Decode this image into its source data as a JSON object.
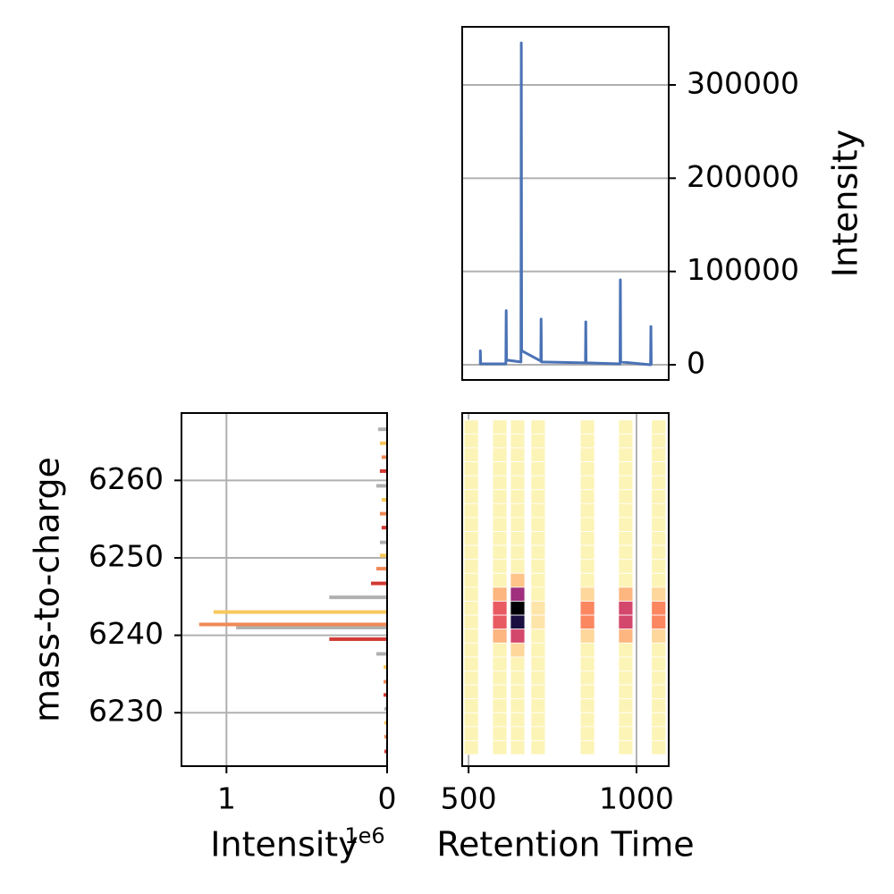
{
  "chart_data": [
    {
      "type": "line",
      "x": [
        535,
        535,
        536,
        611,
        612,
        613,
        656,
        657,
        658,
        715,
        716,
        717,
        848,
        849,
        850,
        951,
        952,
        953,
        1042,
        1043,
        1044
      ],
      "series": [
        {
          "color": "#4a72b5",
          "values": [
            0,
            15000,
            1000,
            1000,
            58000,
            5000,
            3000,
            345000,
            15000,
            4000,
            49000,
            3000,
            2000,
            46000,
            2000,
            1000,
            91000,
            3000,
            0,
            41000,
            0
          ]
        }
      ],
      "xlim": [
        481,
        1096
      ],
      "ylim": [
        -16300,
        362300
      ],
      "yticks": [
        0,
        100000,
        200000,
        300000
      ],
      "ylabel": "Intensity",
      "y_axis_side": "right",
      "grid": "y"
    },
    {
      "type": "barh",
      "series": [
        {
          "color": "#b0b0b0",
          "y": [
            6266.6,
            6259.3,
            6252.0,
            6244.9,
            6241.0,
            6237.6,
            6230.5
          ],
          "values": [
            56000,
            67000,
            45000,
            360000,
            940000,
            67000,
            17000
          ]
        },
        {
          "color": "#f7c85c",
          "y": [
            6264.8,
            6257.5,
            6250.3,
            6243.0,
            6235.9,
            6228.7
          ],
          "values": [
            45000,
            34000,
            45000,
            1080000,
            22000,
            17000
          ]
        },
        {
          "color": "#ef8a58",
          "y": [
            6263.0,
            6255.7,
            6248.6,
            6241.4,
            6234.0,
            6226.9
          ],
          "values": [
            34000,
            45000,
            67000,
            1170000,
            22000,
            17000
          ]
        },
        {
          "color": "#d23a33",
          "y": [
            6261.2,
            6253.9,
            6246.7,
            6239.5,
            6232.3,
            6225.0
          ],
          "values": [
            45000,
            34000,
            100000,
            360000,
            22000,
            17000
          ]
        }
      ],
      "xlim": [
        1280000,
        0
      ],
      "xticks": [
        {
          "value": 1000000,
          "label": "1"
        },
        0
      ],
      "x_offset_text": "1e6",
      "ylim": [
        6223.1,
        6268.7
      ],
      "yticks": [
        6230,
        6240,
        6250,
        6260
      ],
      "xlabel": "Intensity",
      "ylabel": "mass-to-charge",
      "grid": "xy"
    },
    {
      "type": "heatmap",
      "x": [
        508,
        593,
        646,
        707,
        854,
        968,
        1066
      ],
      "y": [
        6266.9,
        6265.1,
        6263.3,
        6261.5,
        6259.7,
        6257.9,
        6256.1,
        6254.3,
        6252.5,
        6250.7,
        6248.9,
        6247.1,
        6245.3,
        6243.5,
        6241.7,
        6239.9,
        6238.1,
        6236.3,
        6234.5,
        6232.7,
        6230.9,
        6229.1,
        6227.3,
        6225.5
      ],
      "z": [
        [
          20000,
          20000,
          20000,
          20000,
          20000,
          20000,
          20000,
          20000,
          20000,
          20000,
          20000,
          20000,
          20000,
          20000,
          20000,
          20000,
          20000,
          20000,
          20000,
          20000,
          20000,
          20000,
          20000,
          20000
        ],
        [
          20000,
          20000,
          20000,
          20000,
          20000,
          20000,
          20000,
          20000,
          20000,
          20000,
          20000,
          20000,
          150000,
          350000,
          350000,
          150000,
          20000,
          20000,
          20000,
          20000,
          20000,
          20000,
          20000,
          20000
        ],
        [
          20000,
          20000,
          20000,
          20000,
          20000,
          20000,
          20000,
          20000,
          20000,
          20000,
          20000,
          120000,
          550000,
          1000000,
          880000,
          420000,
          80000,
          20000,
          20000,
          20000,
          20000,
          20000,
          20000,
          20000
        ],
        [
          20000,
          20000,
          20000,
          20000,
          20000,
          20000,
          20000,
          20000,
          20000,
          20000,
          20000,
          20000,
          20000,
          50000,
          50000,
          20000,
          20000,
          20000,
          20000,
          20000,
          20000,
          20000,
          20000,
          20000
        ],
        [
          20000,
          20000,
          20000,
          20000,
          20000,
          20000,
          20000,
          20000,
          20000,
          20000,
          20000,
          20000,
          80000,
          250000,
          250000,
          80000,
          20000,
          20000,
          20000,
          20000,
          20000,
          20000,
          20000,
          20000
        ],
        [
          20000,
          20000,
          20000,
          20000,
          20000,
          20000,
          20000,
          20000,
          20000,
          20000,
          20000,
          20000,
          150000,
          420000,
          420000,
          150000,
          20000,
          20000,
          20000,
          20000,
          20000,
          20000,
          20000,
          20000
        ],
        [
          20000,
          20000,
          20000,
          20000,
          20000,
          20000,
          20000,
          20000,
          20000,
          20000,
          20000,
          20000,
          80000,
          250000,
          250000,
          80000,
          20000,
          20000,
          20000,
          20000,
          20000,
          20000,
          20000,
          20000
        ]
      ],
      "zlim": [
        0,
        1000000
      ],
      "colormap": [
        "#fcfdbf",
        "#fec287",
        "#fb8761",
        "#e55064",
        "#b5367a",
        "#812581",
        "#4f127b",
        "#1c1044",
        "#000004"
      ],
      "xlim": [
        481,
        1096
      ],
      "ylim": [
        6223.1,
        6268.7
      ],
      "xticks": [
        500,
        1000
      ],
      "xlabel": "Retention Time",
      "grid": "x"
    }
  ]
}
